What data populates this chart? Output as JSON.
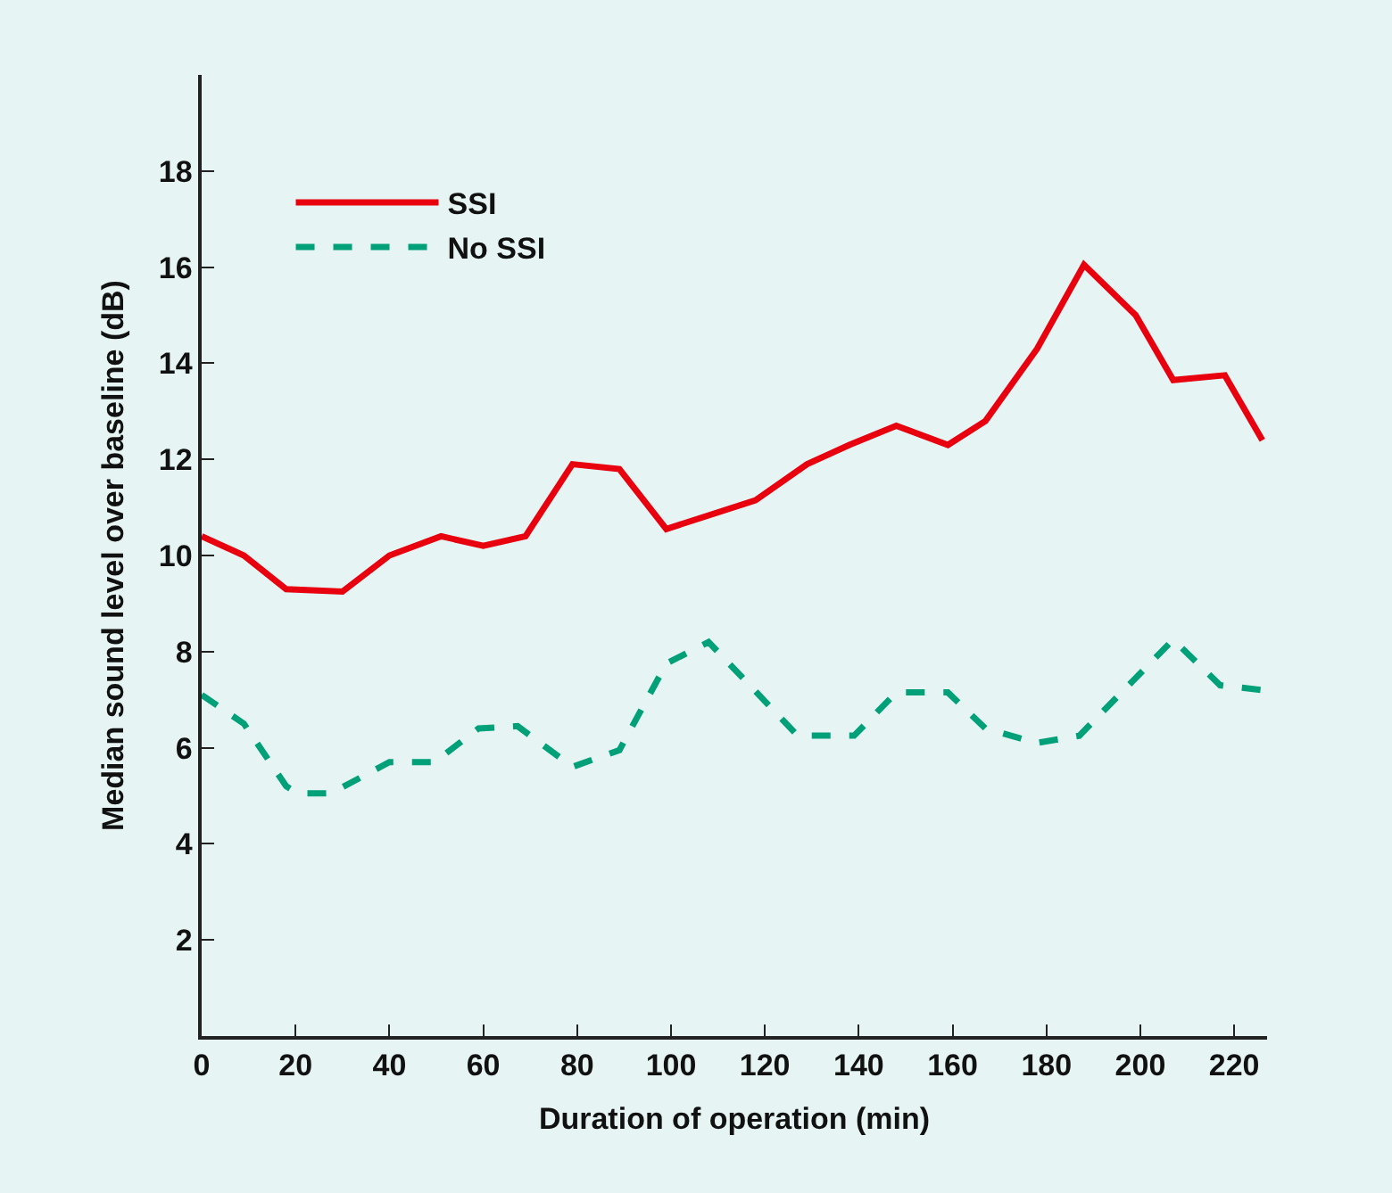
{
  "chart_data": {
    "type": "line",
    "xlabel": "Duration of operation (min)",
    "ylabel": "Median sound level over baseline (dB)",
    "xlim": [
      0,
      227
    ],
    "ylim": [
      0,
      20
    ],
    "xticks": [
      0,
      20,
      40,
      60,
      80,
      100,
      120,
      140,
      160,
      180,
      200,
      220
    ],
    "yticks": [
      2,
      4,
      6,
      8,
      10,
      12,
      14,
      16,
      18
    ],
    "grid": false,
    "legend": "top left",
    "series": [
      {
        "name": "SSI",
        "color": "#e8000f",
        "line_style": "solid",
        "x": [
          0,
          9,
          18,
          30,
          40,
          51,
          60,
          69,
          79,
          89,
          99,
          118,
          129,
          138,
          148,
          159,
          167,
          178,
          188,
          199,
          207,
          218,
          226
        ],
        "values": [
          10.4,
          10.0,
          9.3,
          9.25,
          10.0,
          10.4,
          10.2,
          10.4,
          11.9,
          11.8,
          10.55,
          11.15,
          11.9,
          12.3,
          12.7,
          12.3,
          12.8,
          14.3,
          16.05,
          15.0,
          13.65,
          13.75,
          12.4
        ]
      },
      {
        "name": "No SSI",
        "color": "#00a078",
        "line_style": "dashed",
        "x": [
          0,
          9,
          18,
          20.5,
          27.5,
          40,
          49.6,
          59,
          67.3,
          79,
          89,
          99,
          108,
          127,
          139,
          148,
          159,
          167,
          178,
          187,
          207,
          217,
          226
        ],
        "values": [
          7.1,
          6.5,
          5.2,
          5.05,
          5.05,
          5.7,
          5.7,
          6.4,
          6.45,
          5.6,
          5.95,
          7.75,
          8.2,
          6.25,
          6.25,
          7.15,
          7.15,
          6.4,
          6.1,
          6.25,
          8.25,
          7.3,
          7.2
        ]
      }
    ]
  }
}
